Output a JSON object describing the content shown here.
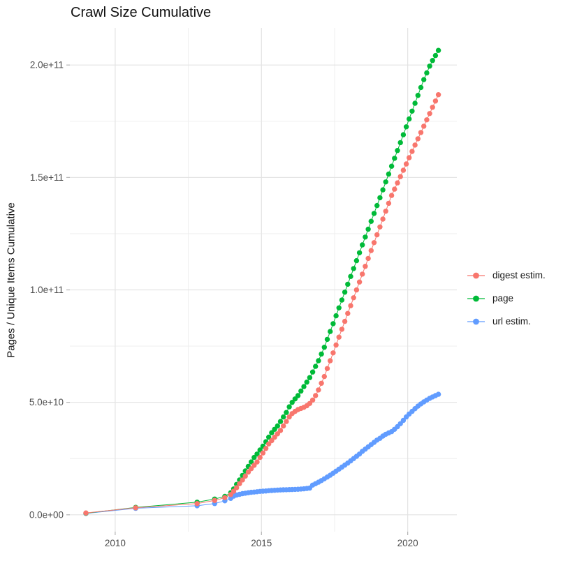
{
  "header": {
    "title": "Crawl Size Cumulative"
  },
  "axes": {
    "y_label": "Pages / Unique Items Cumulative",
    "x_label": ""
  },
  "legend": {
    "position": "right"
  },
  "chart_data": {
    "type": "line",
    "title": "Crawl Size Cumulative",
    "xlabel": "",
    "ylabel": "Pages / Unique Items Cumulative",
    "legend_position": "right",
    "grid": true,
    "value_unit": "1e9 (billions of pages / items)",
    "x_range": [
      2008.45,
      2021.68
    ],
    "y_range_e9": [
      -7.5,
      216.5
    ],
    "x_ticks": [
      {
        "v": 2010,
        "label": "2010"
      },
      {
        "v": 2015,
        "label": "2015"
      },
      {
        "v": 2020,
        "label": "2020"
      }
    ],
    "x_minor": [
      2012.5,
      2017.5
    ],
    "y_ticks": [
      {
        "v": 0,
        "label": "0.0e+00"
      },
      {
        "v": 50,
        "label": "5.0e+10"
      },
      {
        "v": 100,
        "label": "1.0e+11"
      },
      {
        "v": 150,
        "label": "1.5e+11"
      },
      {
        "v": 200,
        "label": "2.0e+11"
      }
    ],
    "y_minor": [
      25,
      75,
      125,
      175
    ],
    "x": [
      2009.0,
      2010.7,
      2012.8,
      2013.4,
      2013.75,
      2013.95,
      2014.05,
      2014.15,
      2014.25,
      2014.35,
      2014.45,
      2014.55,
      2014.65,
      2014.75,
      2014.85,
      2014.95,
      2015.05,
      2015.15,
      2015.25,
      2015.35,
      2015.45,
      2015.55,
      2015.65,
      2015.75,
      2015.85,
      2015.95,
      2016.05,
      2016.15,
      2016.25,
      2016.35,
      2016.45,
      2016.55,
      2016.65,
      2016.75,
      2016.85,
      2016.95,
      2017.05,
      2017.15,
      2017.25,
      2017.35,
      2017.45,
      2017.55,
      2017.65,
      2017.75,
      2017.85,
      2017.95,
      2018.05,
      2018.15,
      2018.25,
      2018.35,
      2018.45,
      2018.55,
      2018.65,
      2018.75,
      2018.85,
      2018.95,
      2019.05,
      2019.15,
      2019.25,
      2019.35,
      2019.45,
      2019.55,
      2019.65,
      2019.75,
      2019.85,
      2019.95,
      2020.05,
      2020.15,
      2020.25,
      2020.35,
      2020.45,
      2020.55,
      2020.65,
      2020.75,
      2020.85,
      2020.95,
      2021.05
    ],
    "series": [
      {
        "name": "digest estim.",
        "color": "#F8766D",
        "values_e9": [
          0.8,
          3.1,
          5.0,
          6.4,
          7.6,
          9.0,
          10.5,
          12.0,
          13.8,
          15.5,
          17.2,
          19.0,
          20.5,
          22.0,
          23.5,
          25.5,
          27.5,
          29.5,
          31.5,
          33.0,
          34.5,
          36.0,
          37.5,
          39.5,
          41.5,
          43.5,
          45.0,
          46.0,
          46.8,
          47.3,
          47.8,
          48.5,
          49.5,
          51.0,
          53.0,
          55.5,
          58.5,
          61.5,
          65.0,
          68.5,
          72.0,
          75.5,
          79.0,
          82.5,
          86.0,
          89.5,
          93.0,
          96.5,
          100.0,
          103.5,
          107.0,
          110.5,
          114.0,
          117.5,
          121.0,
          124.5,
          128.0,
          131.5,
          135.0,
          138.5,
          142.0,
          144.8,
          147.6,
          150.4,
          153.2,
          156.0,
          158.8,
          161.6,
          164.4,
          167.2,
          170.0,
          172.8,
          175.6,
          178.4,
          181.2,
          184.0,
          186.8
        ]
      },
      {
        "name": "page",
        "color": "#00BA38",
        "values_e9": [
          0.7,
          3.3,
          5.6,
          7.0,
          8.2,
          9.8,
          11.5,
          13.5,
          15.5,
          17.5,
          19.5,
          21.5,
          23.5,
          25.5,
          27.0,
          28.8,
          30.5,
          32.5,
          34.5,
          36.5,
          38.0,
          39.5,
          41.5,
          43.5,
          45.5,
          48.0,
          50.0,
          51.5,
          53.0,
          55.0,
          57.0,
          59.0,
          61.0,
          63.5,
          66.0,
          68.5,
          71.5,
          74.5,
          78.0,
          81.5,
          85.0,
          88.5,
          92.0,
          95.5,
          99.0,
          102.5,
          106.0,
          109.5,
          113.0,
          116.5,
          120.0,
          123.5,
          127.0,
          130.5,
          134.0,
          137.5,
          141.0,
          144.5,
          148.0,
          151.5,
          155.0,
          158.5,
          162.0,
          165.5,
          169.0,
          172.5,
          176.0,
          179.5,
          183.0,
          186.5,
          190.0,
          193.5,
          196.5,
          199.5,
          202.0,
          204.2,
          206.5
        ]
      },
      {
        "name": "url estim.",
        "color": "#619CFF",
        "values_e9": [
          0.6,
          2.9,
          4.0,
          5.0,
          6.2,
          7.3,
          8.3,
          8.8,
          9.1,
          9.4,
          9.6,
          9.8,
          10.0,
          10.1,
          10.25,
          10.4,
          10.5,
          10.6,
          10.7,
          10.8,
          10.9,
          11.0,
          11.05,
          11.1,
          11.15,
          11.2,
          11.25,
          11.3,
          11.35,
          11.45,
          11.55,
          11.7,
          11.9,
          13.2,
          13.8,
          14.5,
          15.2,
          16.0,
          16.8,
          17.6,
          18.5,
          19.4,
          20.3,
          21.2,
          22.1,
          23.0,
          24.0,
          25.0,
          26.0,
          27.0,
          28.2,
          29.2,
          30.2,
          31.2,
          32.2,
          33.2,
          34.0,
          35.0,
          35.8,
          36.4,
          37.0,
          38.0,
          39.2,
          40.5,
          42.0,
          43.5,
          44.8,
          46.0,
          47.2,
          48.3,
          49.3,
          50.2,
          51.0,
          51.8,
          52.4,
          53.0,
          53.6
        ]
      }
    ]
  },
  "colors": {
    "grid_major": "#e3e3e3",
    "grid_minor": "#eeeeee",
    "tick_mark": "#b3b3b3",
    "tick_text": "#4d4d4d",
    "title_text": "#111111"
  }
}
